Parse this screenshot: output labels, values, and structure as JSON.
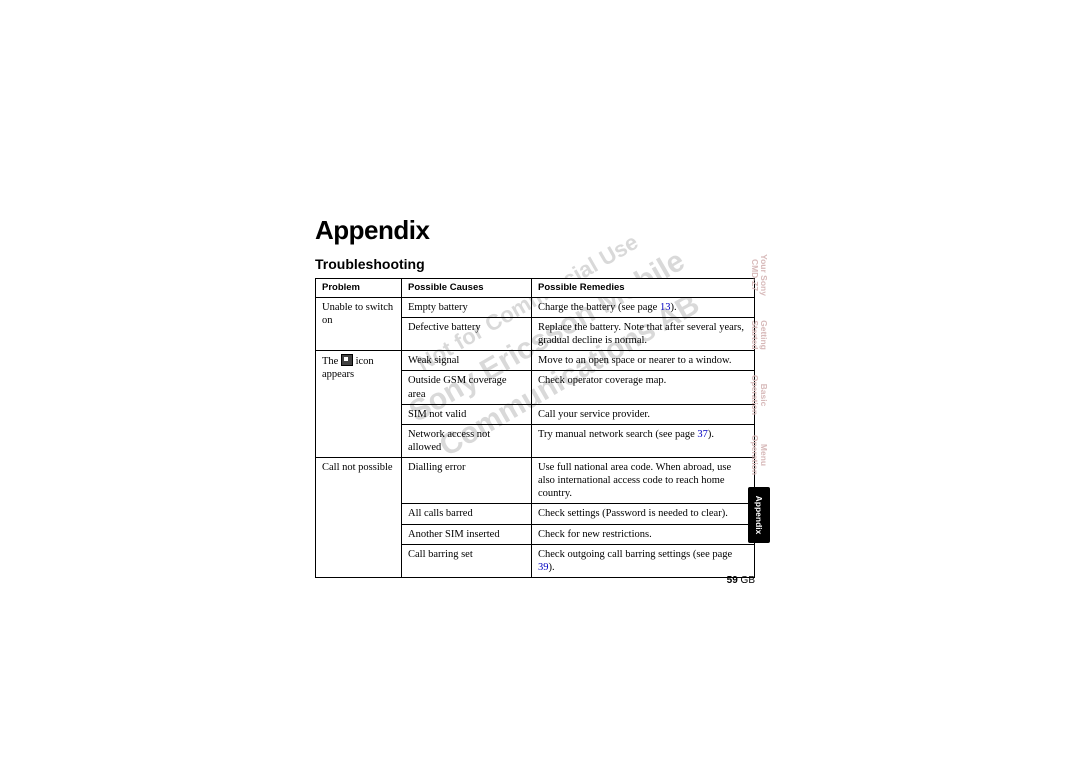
{
  "title": "Appendix",
  "subtitle": "Troubleshooting",
  "headers": {
    "c0": "Problem",
    "c1": "Possible Causes",
    "c2": "Possible Remedies"
  },
  "rows": {
    "r0": {
      "problem": "Unable to switch on",
      "cause": "Empty battery",
      "remedy_pre": "Charge the battery (see page ",
      "remedy_link": "13",
      "remedy_post": ")."
    },
    "r1": {
      "cause": "Defective battery",
      "remedy": "Replace the battery. Note that after several years, gradual decline is normal."
    },
    "r2": {
      "problem_pre": "The ",
      "problem_post": " icon appears",
      "cause": "Weak signal",
      "remedy": "Move to an open space or nearer to a window."
    },
    "r3": {
      "cause": "Outside GSM coverage area",
      "remedy": "Check operator coverage map."
    },
    "r4": {
      "cause": "SIM not valid",
      "remedy": "Call your service provider."
    },
    "r5": {
      "cause": "Network access not allowed",
      "remedy_pre": "Try manual network search (see page ",
      "remedy_link": "37",
      "remedy_post": ")."
    },
    "r6": {
      "problem": "Call not possible",
      "cause": "Dialling error",
      "remedy": "Use full national area code. When abroad, use also international access code to reach home country."
    },
    "r7": {
      "cause": "All calls barred",
      "remedy": "Check settings (Password is needed to clear)."
    },
    "r8": {
      "cause": "Another SIM inserted",
      "remedy": "Check for new restrictions."
    },
    "r9": {
      "cause": "Call barring set",
      "remedy_pre": "Check outgoing call barring settings (see page ",
      "remedy_link": "39",
      "remedy_post": ")."
    }
  },
  "page_num": "59",
  "page_lang": "GB",
  "tabs": {
    "your1": "Your Sony",
    "your2": "CMD-Z7",
    "getting1": "Getting",
    "getting2": "Started",
    "basic1": "Basic",
    "basic2": "Operation",
    "menu1": "Menu",
    "menu2": "Operation",
    "appendix": "Appendix"
  },
  "watermark": {
    "l1": "Not for Commercial Use",
    "l2": "Sony Ericsson Mobile Communications AB"
  }
}
